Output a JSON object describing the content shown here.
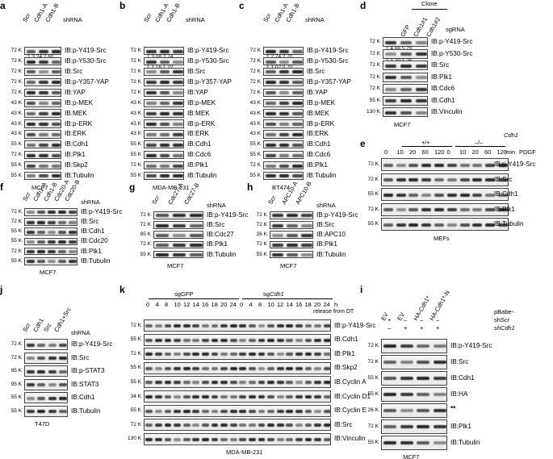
{
  "panels": [
    {
      "label": "a",
      "lanes": [
        "Scr",
        "Cdh1-A",
        "Cdh1-B"
      ],
      "header": "shRNA",
      "caption": "MCF7",
      "rows": [
        [
          "72 K",
          "IB:p-Y419-Src"
        ],
        [
          "72 K",
          "IB:p-Y530-Src"
        ],
        [
          "72 K",
          "IB:Src"
        ],
        [
          "72 K",
          "IB:p-Y357-YAP"
        ],
        [
          "72 K",
          "IB:YAP"
        ],
        [
          "43 K",
          "IB:p-MEK"
        ],
        [
          "43 K",
          "IB:MEK"
        ],
        [
          "43 K",
          "IB:p-ERK"
        ],
        [
          "43 K",
          "IB:ERK"
        ],
        [
          "55 K",
          "IB:Cdh1"
        ],
        [
          "72 K",
          "IB:Plk1"
        ],
        [
          "55 K",
          "IB:Skp2"
        ],
        [
          "55 K",
          "IB:Tubulin"
        ]
      ],
      "quant": "1   3.24 2.60"
    },
    {
      "label": "b",
      "lanes": [
        "Scr",
        "Cdh1-A",
        "Cdh1-B"
      ],
      "header": "shRNA",
      "caption": "MDA-MB-231",
      "rows": [
        [
          "72 K",
          "IB:p-Y419-Src"
        ],
        [
          "72 K",
          "IB:p-Y530-Src"
        ],
        [
          "72 K",
          "IB:Src"
        ],
        [
          "72 K",
          "IB:p-Y357-YAP"
        ],
        [
          "72 K",
          "IB:YAP"
        ],
        [
          "43 K",
          "IB:p-MEK"
        ],
        [
          "43 K",
          "IB:MEK"
        ],
        [
          "43 K",
          "IB:p-ERK"
        ],
        [
          "43 K",
          "IB:ERK"
        ],
        [
          "55 K",
          "IB:Cdh1"
        ],
        [
          "55 K",
          "IB:Cdc6"
        ],
        [
          "72 K",
          "IB:Plk1"
        ],
        [
          "55 K",
          "IB:Tubulin"
        ]
      ],
      "quant": "1   3.08 2.74",
      "quant2": "1   1.16 1.22"
    },
    {
      "label": "c",
      "lanes": [
        "Scr",
        "Cdh1-A",
        "Cdh1-B"
      ],
      "header": "shRNA",
      "caption": "BT474",
      "rows": [
        [
          "72 K",
          "IB:p-Y419-Src"
        ],
        [
          "72 K",
          "IB:p-Y530-Src"
        ],
        [
          "72 K",
          "IB:Src"
        ],
        [
          "72 K",
          "IB:p-Y357-YAP"
        ],
        [
          "72 K",
          "IB:YAP"
        ],
        [
          "43 K",
          "IB:p-MEK"
        ],
        [
          "43 K",
          "IB:MEK"
        ],
        [
          "43 K",
          "IB:p-ERK"
        ],
        [
          "43 K",
          "IB:ERK"
        ],
        [
          "55 K",
          "IB:Cdh1"
        ],
        [
          "55 K",
          "IB:Cdc6"
        ],
        [
          "72 K",
          "IB:Plk1"
        ],
        [
          "55 K",
          "IB:Tubulin"
        ]
      ],
      "quant": "1   2.74 2.70",
      "quant2": "1   1.02 0.70"
    },
    {
      "label": "d",
      "lanes": [
        "GFP",
        "Cdh1#1",
        "Cdh1#2"
      ],
      "header": "sgRNA",
      "clone": "Clone",
      "caption": "MCF7",
      "rows": [
        [
          "72 K",
          "IB:p-Y419-Src"
        ],
        [
          "72 K",
          "IB:p-Y530-Src"
        ],
        [
          "72 K",
          "IB:Src"
        ],
        [
          "72 K",
          "IB:Plk1"
        ],
        [
          "72 K",
          "IB:Cdc6"
        ],
        [
          "55 K",
          "IB:Cdh1"
        ],
        [
          "130 K",
          "IB:Vinculin"
        ]
      ],
      "quant": "1   4.66 5.79",
      "quant2": "1   1.20 1.25"
    },
    {
      "label": "e",
      "gene": "Cdh1",
      "wt": "+/+",
      "ko": "–/–",
      "times": [
        "0",
        "10",
        "20",
        "60",
        "120",
        "0",
        "10",
        "20",
        "60",
        "120"
      ],
      "min": "min",
      "pdgf": "PDGF",
      "caption": "MEFs",
      "rows": [
        [
          "72 K",
          "IB:p-Y419-Src"
        ],
        [
          "72 K",
          "IB:Src"
        ],
        [
          "55 K",
          "IB:Cdh1"
        ],
        [
          "72 K",
          "IB:Plk1"
        ],
        [
          "55 K",
          "IB:Tubulin"
        ]
      ]
    },
    {
      "label": "f",
      "lanes": [
        "Scr",
        "Cdh1-A",
        "Cdh1-B",
        "Cdc20-A",
        "Cdc20-B"
      ],
      "header": "shRNA",
      "caption": "MCF7",
      "rows": [
        [
          "72 K",
          "IB:p-Y419-Src"
        ],
        [
          "72 K",
          "IB:Src"
        ],
        [
          "55 K",
          "IB:Cdh1"
        ],
        [
          "55 K",
          "IB:Cdc20"
        ],
        [
          "72 K",
          "IB:Plk1"
        ],
        [
          "55 K",
          "IB:Tubulin"
        ]
      ]
    },
    {
      "label": "g",
      "lanes": [
        "Scr",
        "Cdc27-A",
        "Cdc27-B"
      ],
      "header": "shRNA",
      "caption": "MCF7",
      "rows": [
        [
          "72 K",
          "IB:p-Y419-Src"
        ],
        [
          "72 K",
          "IB:Src"
        ],
        [
          "95 K",
          "IB:Cdc27"
        ],
        [
          "72 K",
          "IB:Plk1"
        ],
        [
          "55 K",
          "IB:Tubulin"
        ]
      ]
    },
    {
      "label": "h",
      "lanes": [
        "Scr",
        "APC10-A",
        "APC10-B"
      ],
      "header": "shRNA",
      "caption": "MCF7",
      "rows": [
        [
          "72 K",
          "IB:p-Y419-Src"
        ],
        [
          "72 K",
          "IB:Src"
        ],
        [
          "26 K",
          "IB:APC10"
        ],
        [
          "72 K",
          "IB:Plk1"
        ],
        [
          "55 K",
          "IB:Tubulin"
        ]
      ]
    },
    {
      "label": "i",
      "header_lines": [
        "pBabe-",
        "shScr",
        "shCdh1"
      ],
      "lanes": [
        "EV",
        "EV",
        "HA-Cdh1*",
        "HA-Cdh1*-N"
      ],
      "sign1": [
        "+",
        "–",
        "–",
        "–"
      ],
      "sign2": [
        "–",
        "+",
        "+",
        "+"
      ],
      "caption": "MCF7",
      "rows": [
        [
          "72 K",
          "IB:p-Y419-Src"
        ],
        [
          "72 K",
          "IB:Src"
        ],
        [
          "55 K",
          "IB:Cdh1"
        ],
        [
          "55 K",
          "IB:HA"
        ],
        [
          "26 K",
          ""
        ],
        [
          "72 K",
          "IB:Plk1"
        ],
        [
          "55 K",
          "IB:Tubulin"
        ]
      ],
      "asterisk": "**"
    },
    {
      "label": "j",
      "lanes": [
        "Scr",
        "Cdh1",
        "Src",
        "Cdh1+Src"
      ],
      "header": "shRNA",
      "caption": "T47D",
      "rows": [
        [
          "72 K",
          "IB:p-Y419-Src"
        ],
        [
          "72 K",
          "IB:Src"
        ],
        [
          "95 K",
          "IB:p-STAT3"
        ],
        [
          "95 K",
          "IB:STAT3"
        ],
        [
          "55 K",
          "IB:Cdh1"
        ],
        [
          "55 K",
          "IB:Tubulin"
        ]
      ]
    },
    {
      "label": "k",
      "sg1": "sgGFP",
      "sg2": "sgCdh1",
      "times": [
        "0",
        "4",
        "8",
        "10",
        "12",
        "14",
        "16",
        "18",
        "20",
        "24"
      ],
      "h": "h",
      "release": "release from DT",
      "caption": "MDA-MB-231",
      "rows": [
        [
          "72 K",
          "IB:p-Y419-Src"
        ],
        [
          "55 K",
          "IB:Cdh1"
        ],
        [
          "72 K",
          "IB:Plk1"
        ],
        [
          "55 K",
          "IB:Skp2"
        ],
        [
          "55 K",
          "IB:Cyclin A"
        ],
        [
          "34 K",
          "IB:Cyclin D1"
        ],
        [
          "55 K",
          "IB:Cyclin E"
        ],
        [
          "72 K",
          "IB:Src"
        ],
        [
          "130 K",
          "IB:Vinculin"
        ]
      ]
    }
  ]
}
